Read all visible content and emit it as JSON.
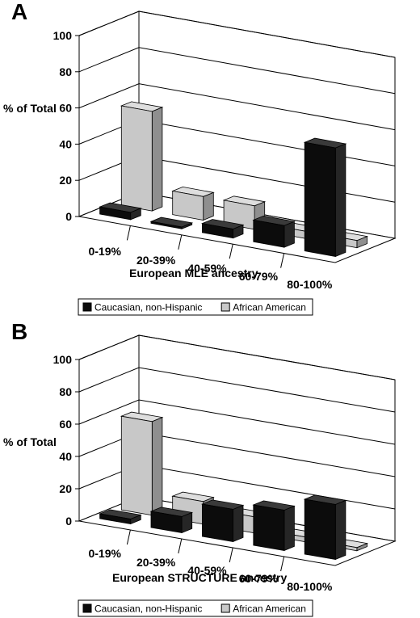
{
  "chart_data": [
    {
      "panel": "A",
      "type": "bar",
      "subtype": "3d-clustered",
      "categories": [
        "0-19%",
        "20-39%",
        "40-59%",
        "60-79%",
        "80-100%"
      ],
      "series": [
        {
          "name": "Caucasian, non-Hispanic",
          "values": [
            4,
            1,
            5,
            12,
            60
          ]
        },
        {
          "name": "African American",
          "values": [
            55,
            13,
            13,
            4,
            4
          ]
        }
      ],
      "xlabel": "European MLE ancestry",
      "ylabel": "% of Total",
      "ylim": [
        0,
        100
      ],
      "yticks": [
        0,
        20,
        40,
        60,
        80,
        100
      ],
      "grid": true,
      "legend": "bottom"
    },
    {
      "panel": "B",
      "type": "bar",
      "subtype": "3d-clustered",
      "categories": [
        "0-19%",
        "20-39%",
        "40-59%",
        "60-79%",
        "80-100%"
      ],
      "series": [
        {
          "name": "Caucasian, non-Hispanic",
          "values": [
            3,
            10,
            20,
            25,
            34
          ]
        },
        {
          "name": "African American",
          "values": [
            58,
            14,
            10,
            3,
            2
          ]
        }
      ],
      "xlabel": "European STRUCTURE ancestry",
      "ylabel": "% of Total",
      "ylim": [
        0,
        100
      ],
      "yticks": [
        0,
        20,
        40,
        60,
        80,
        100
      ],
      "grid": true,
      "legend": "bottom"
    }
  ],
  "colors": {
    "caucasian": {
      "front": "#0c0c0c",
      "top": "#3a3a3a",
      "side": "#262626"
    },
    "african_american": {
      "front": "#c8c8c8",
      "top": "#dedede",
      "side": "#8f8f8f"
    },
    "axes": "#000000"
  }
}
